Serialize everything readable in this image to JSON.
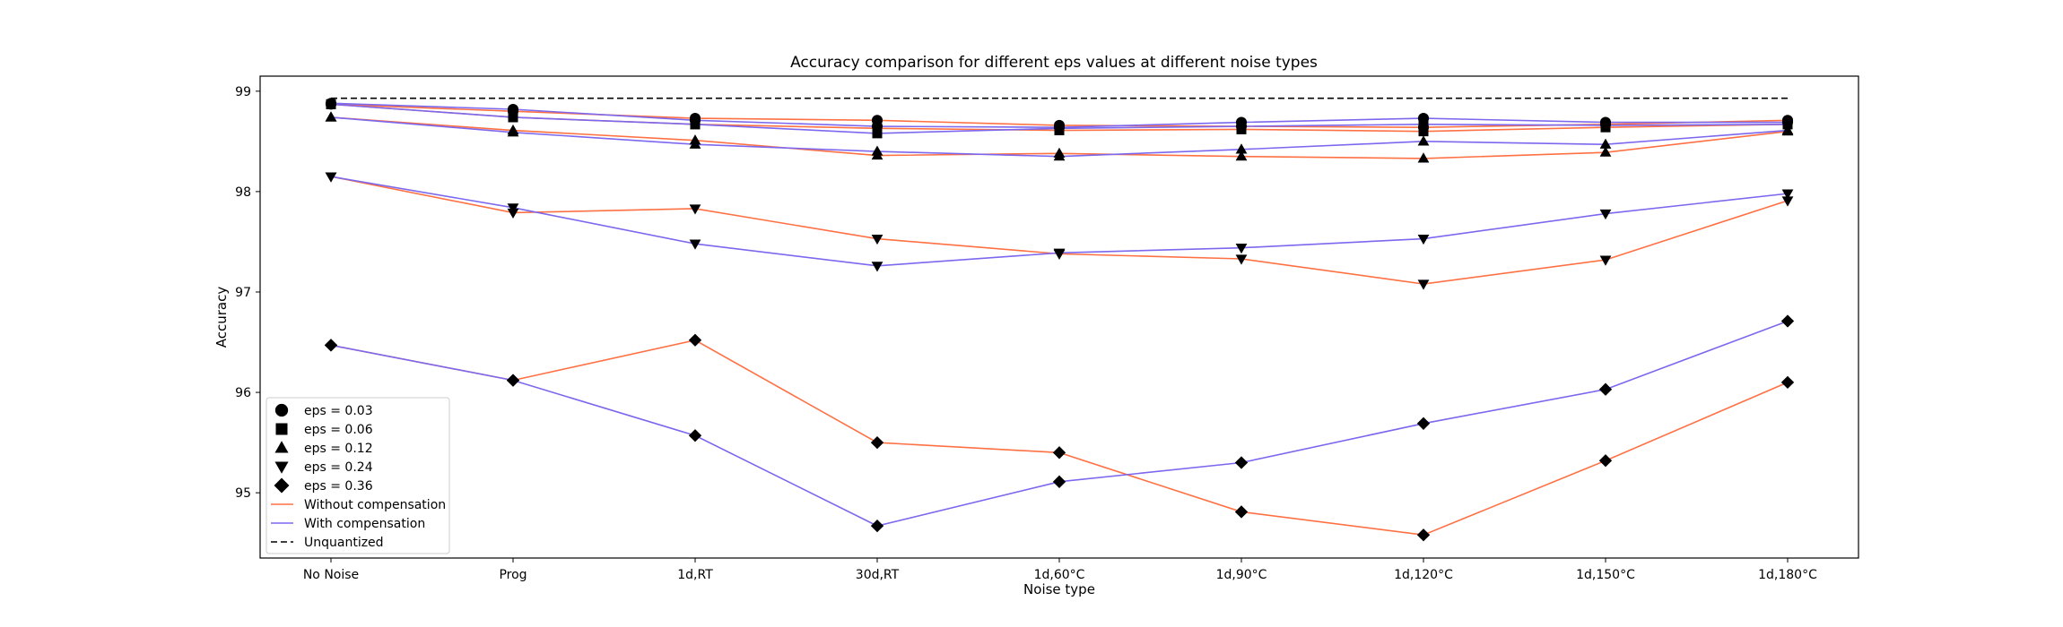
{
  "chart_data": {
    "type": "line",
    "title": "Accuracy comparison for different eps values at different noise types",
    "xlabel": "Noise type",
    "ylabel": "Accuracy",
    "categories": [
      "No Noise",
      "Prog",
      "1d,RT",
      "30d,RT",
      "1d,60°C",
      "1d,90°C",
      "1d,120°C",
      "1d,150°C",
      "1d,180°C"
    ],
    "ylim": [
      94.35,
      99.15
    ],
    "yticks": [
      95,
      96,
      97,
      98,
      99
    ],
    "grid": false,
    "legend_position": "lower-left",
    "colors": {
      "without": "#FF7043",
      "with": "#7B68EE",
      "unquantized": "#000000",
      "marker": "#000000"
    },
    "series": [
      {
        "eps": "eps = 0.03",
        "marker": "circle",
        "compensation": "without",
        "values": [
          98.87,
          98.8,
          98.73,
          98.71,
          98.66,
          98.65,
          98.64,
          98.67,
          98.71
        ]
      },
      {
        "eps": "eps = 0.03",
        "marker": "circle",
        "compensation": "with",
        "values": [
          98.88,
          98.82,
          98.71,
          98.65,
          98.64,
          98.69,
          98.73,
          98.69,
          98.69
        ]
      },
      {
        "eps": "eps = 0.06",
        "marker": "square",
        "compensation": "without",
        "values": [
          98.87,
          98.74,
          98.67,
          98.63,
          98.61,
          98.62,
          98.6,
          98.64,
          98.67
        ]
      },
      {
        "eps": "eps = 0.06",
        "marker": "square",
        "compensation": "with",
        "values": [
          98.87,
          98.74,
          98.67,
          98.58,
          98.63,
          98.65,
          98.67,
          98.66,
          98.67
        ]
      },
      {
        "eps": "eps = 0.12",
        "marker": "triangle-up",
        "compensation": "without",
        "values": [
          98.74,
          98.61,
          98.51,
          98.36,
          98.38,
          98.35,
          98.33,
          98.39,
          98.6
        ]
      },
      {
        "eps": "eps = 0.12",
        "marker": "triangle-up",
        "compensation": "with",
        "values": [
          98.74,
          98.59,
          98.47,
          98.4,
          98.35,
          98.42,
          98.5,
          98.47,
          98.61
        ]
      },
      {
        "eps": "eps = 0.24",
        "marker": "triangle-down",
        "compensation": "without",
        "values": [
          98.15,
          97.79,
          97.83,
          97.53,
          97.38,
          97.33,
          97.08,
          97.32,
          97.91
        ]
      },
      {
        "eps": "eps = 0.24",
        "marker": "triangle-down",
        "compensation": "with",
        "values": [
          98.15,
          97.84,
          97.48,
          97.26,
          97.39,
          97.44,
          97.53,
          97.78,
          97.98
        ]
      },
      {
        "eps": "eps = 0.36",
        "marker": "diamond",
        "compensation": "without",
        "values": [
          96.47,
          96.12,
          96.52,
          95.5,
          95.4,
          94.81,
          94.58,
          95.32,
          96.1
        ]
      },
      {
        "eps": "eps = 0.36",
        "marker": "diamond",
        "compensation": "with",
        "values": [
          96.47,
          96.12,
          95.57,
          94.67,
          95.11,
          95.3,
          95.69,
          96.03,
          96.71
        ]
      }
    ],
    "unquantized": 98.93,
    "legend": [
      {
        "label": "eps = 0.03",
        "marker": "circle"
      },
      {
        "label": "eps = 0.06",
        "marker": "square"
      },
      {
        "label": "eps = 0.12",
        "marker": "triangle-up"
      },
      {
        "label": "eps = 0.24",
        "marker": "triangle-down"
      },
      {
        "label": "eps = 0.36",
        "marker": "diamond"
      },
      {
        "label": "Without compensation",
        "line": "without"
      },
      {
        "label": "With compensation",
        "line": "with"
      },
      {
        "label": "Unquantized",
        "line": "unquantized"
      }
    ]
  }
}
